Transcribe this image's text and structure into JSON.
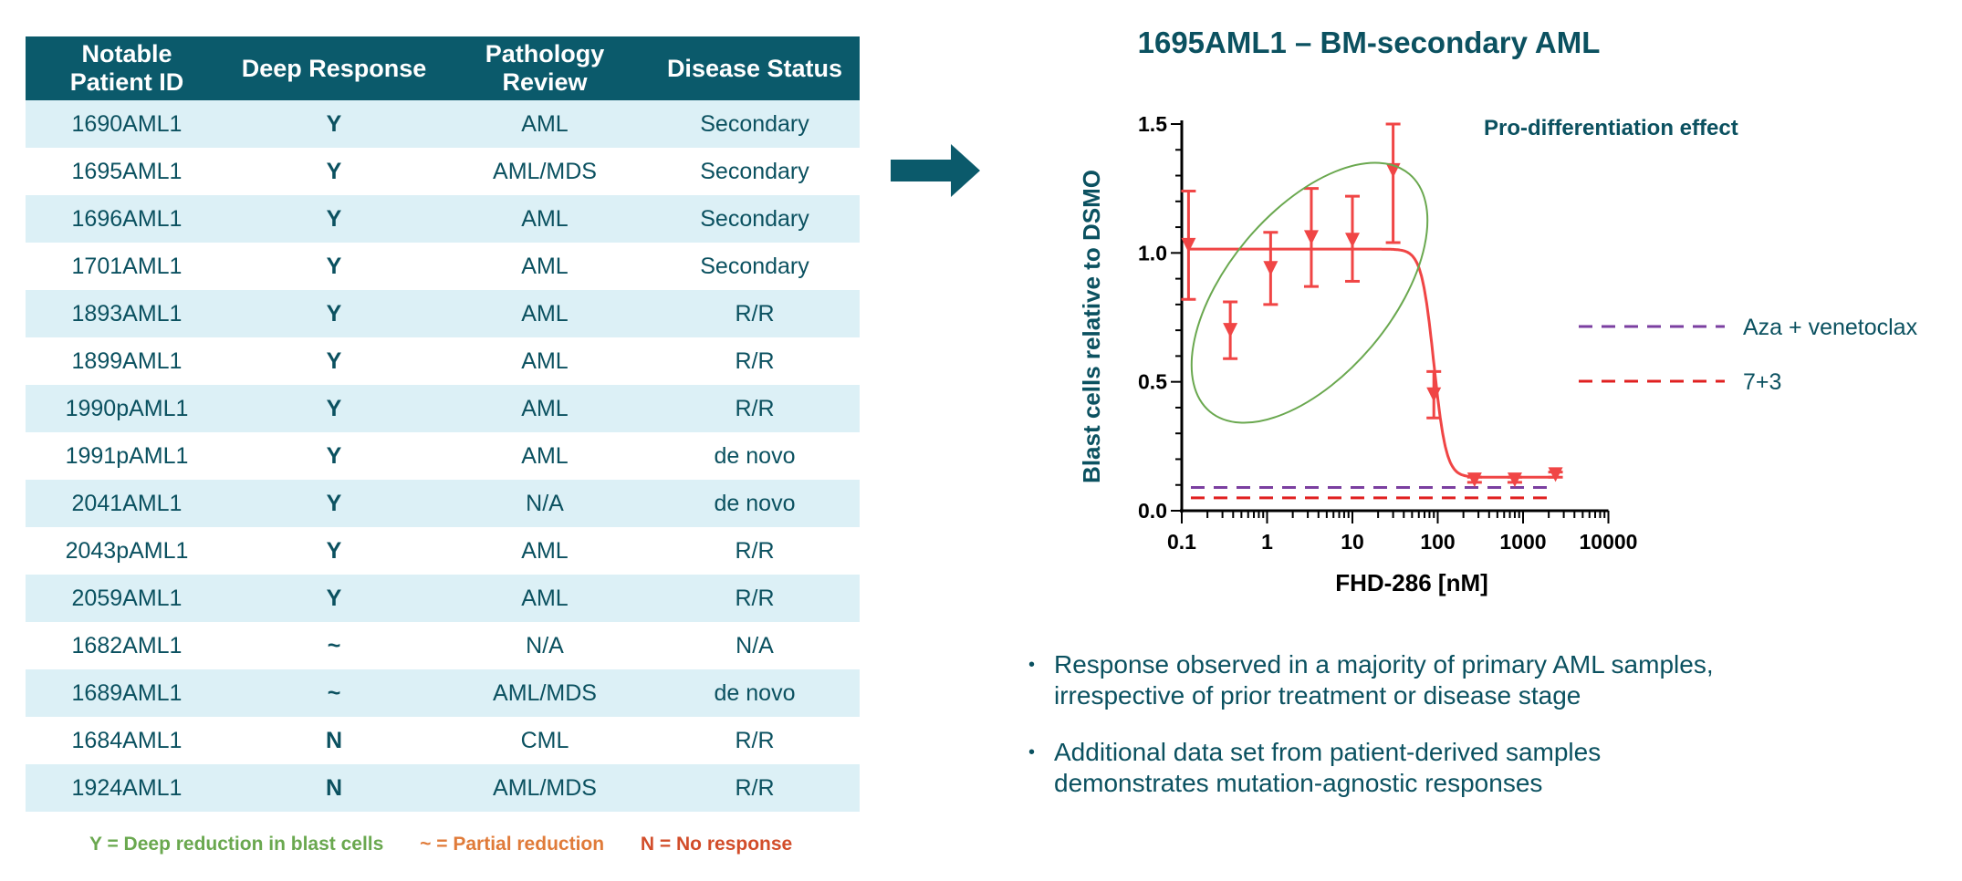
{
  "table": {
    "headers": [
      {
        "line1": "Notable",
        "line2": "Patient ID"
      },
      {
        "line1": "Deep Response",
        "line2": ""
      },
      {
        "line1": "Pathology",
        "line2": "Review"
      },
      {
        "line1": "Disease Status",
        "line2": ""
      }
    ],
    "rows": [
      {
        "id": "1690AML1",
        "response": "Y",
        "pathology": "AML",
        "status": "Secondary"
      },
      {
        "id": "1695AML1",
        "response": "Y",
        "pathology": "AML/MDS",
        "status": "Secondary"
      },
      {
        "id": "1696AML1",
        "response": "Y",
        "pathology": "AML",
        "status": "Secondary"
      },
      {
        "id": "1701AML1",
        "response": "Y",
        "pathology": "AML",
        "status": "Secondary"
      },
      {
        "id": "1893AML1",
        "response": "Y",
        "pathology": "AML",
        "status": "R/R"
      },
      {
        "id": "1899AML1",
        "response": "Y",
        "pathology": "AML",
        "status": "R/R"
      },
      {
        "id": "1990pAML1",
        "response": "Y",
        "pathology": "AML",
        "status": "R/R"
      },
      {
        "id": "1991pAML1",
        "response": "Y",
        "pathology": "AML",
        "status": "de novo"
      },
      {
        "id": "2041AML1",
        "response": "Y",
        "pathology": "N/A",
        "status": "de novo"
      },
      {
        "id": "2043pAML1",
        "response": "Y",
        "pathology": "AML",
        "status": "R/R"
      },
      {
        "id": "2059AML1",
        "response": "Y",
        "pathology": "AML",
        "status": "R/R"
      },
      {
        "id": "1682AML1",
        "response": "~",
        "pathology": "N/A",
        "status": "N/A"
      },
      {
        "id": "1689AML1",
        "response": "~",
        "pathology": "AML/MDS",
        "status": "de novo"
      },
      {
        "id": "1684AML1",
        "response": "N",
        "pathology": "CML",
        "status": "R/R"
      },
      {
        "id": "1924AML1",
        "response": "N",
        "pathology": "AML/MDS",
        "status": "R/R"
      }
    ]
  },
  "legend": {
    "deep": "Y = Deep reduction in blast cells",
    "partial": "~ = Partial reduction",
    "none": "N = No response"
  },
  "colors": {
    "header_bg": "#0b5a6b",
    "row_shade": "#dcf0f6",
    "text": "#0b5160",
    "deep": "#6aa84f",
    "partial": "#e07b39",
    "none": "#d24d2a",
    "curve": "#f04545",
    "aza": "#7b3fa0",
    "seven_three": "#e02020",
    "ellipse": "#6aa84f"
  },
  "bullets": [
    {
      "line1": "Response observed in a majority of primary AML samples,",
      "line2": "irrespective of prior treatment or disease stage"
    },
    {
      "line1": "Additional data set from patient-derived samples",
      "line2": "demonstrates mutation-agnostic responses"
    }
  ],
  "chart_data": {
    "type": "scatter",
    "title": "1695AML1 – BM-secondary AML",
    "xlabel": "FHD-286 [nM]",
    "ylabel": "Blast cells relative to DSMO",
    "xscale": "log",
    "xlim": [
      0.1,
      10000
    ],
    "ylim": [
      0,
      1.5
    ],
    "xticks": [
      0.1,
      1,
      10,
      100,
      1000,
      10000
    ],
    "xtick_labels": [
      "0.1",
      "1",
      "10",
      "100",
      "1000",
      "10000"
    ],
    "yticks": [
      0,
      0.5,
      1.0,
      1.5
    ],
    "ytick_labels": [
      "0.0",
      "0.5",
      "1.0",
      "1.5"
    ],
    "series": [
      {
        "name": "FHD-286",
        "marker": "triangle-down",
        "x": [
          0.12,
          0.37,
          1.1,
          3.3,
          10,
          30,
          90,
          270,
          800,
          2400
        ],
        "y": [
          1.03,
          0.7,
          0.94,
          1.06,
          1.05,
          1.32,
          0.45,
          0.12,
          0.12,
          0.14
        ],
        "err_low": [
          0.82,
          0.59,
          0.8,
          0.87,
          0.89,
          1.04,
          0.36,
          0.11,
          0.11,
          0.13
        ],
        "err_high": [
          1.24,
          0.81,
          1.08,
          1.25,
          1.22,
          1.5,
          0.54,
          0.13,
          0.13,
          0.15
        ]
      }
    ],
    "fit_curve": {
      "top": 1.015,
      "bottom": 0.13,
      "ec50": 90,
      "hill": 6
    },
    "reference_lines": [
      {
        "name": "Aza + venetoclax",
        "y": 0.09,
        "style": "dashed",
        "color": "#7b3fa0"
      },
      {
        "name": "7+3",
        "y": 0.05,
        "style": "dashed",
        "color": "#e02020"
      }
    ],
    "annotations": [
      "Pro-differentiation effect"
    ]
  }
}
